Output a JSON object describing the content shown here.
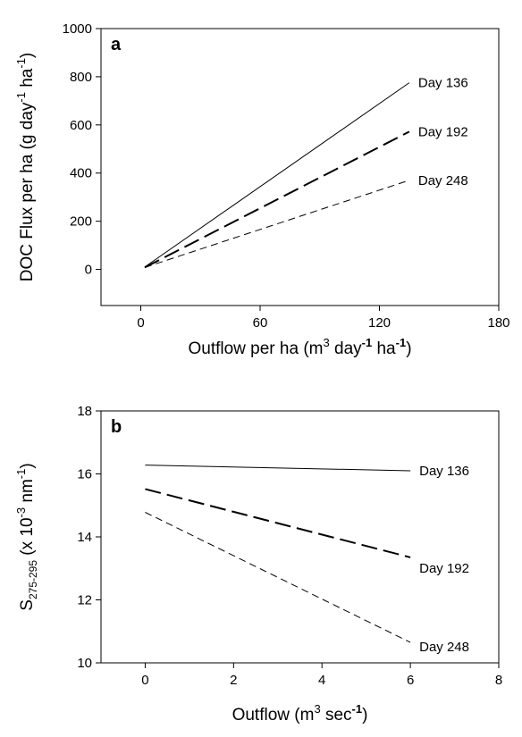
{
  "chart_data": [
    {
      "type": "line",
      "panel_label": "a",
      "xlabel": "Outflow per ha (m³ day⁻¹ ha⁻¹)",
      "xlabel_parts": {
        "pre": "Outflow per ha (m",
        "sup1": "3",
        "mid1": " day",
        "sup2": "-1",
        "mid2": " ha",
        "sup3": "-1",
        "post": ")"
      },
      "ylabel": "DOC Flux per ha (g day⁻¹ ha⁻¹)",
      "ylabel_parts": {
        "pre": "DOC Flux per ha (g day",
        "sup1": "-1",
        "mid1": " ha",
        "sup2": "-1",
        "post": ")"
      },
      "xlim": [
        -20,
        180
      ],
      "ylim": [
        -150,
        1000
      ],
      "xticks": [
        0,
        60,
        120,
        180
      ],
      "yticks": [
        0,
        200,
        400,
        600,
        800,
        1000
      ],
      "grid": false,
      "series": [
        {
          "name": "Day 136",
          "style": "solid",
          "x": [
            2,
            135
          ],
          "y": [
            10,
            775
          ]
        },
        {
          "name": "Day 192",
          "style": "long-dash",
          "x": [
            2,
            135
          ],
          "y": [
            8,
            572
          ]
        },
        {
          "name": "Day 248",
          "style": "short-dash",
          "x": [
            2,
            135
          ],
          "y": [
            8,
            370
          ]
        }
      ]
    },
    {
      "type": "line",
      "panel_label": "b",
      "xlabel": "Outflow (m³ sec⁻¹)",
      "xlabel_parts": {
        "pre": "Outflow (m",
        "sup1": "3",
        "mid1": " sec",
        "sup2": "-1",
        "post": ")"
      },
      "ylabel": "S275-295 (x 10⁻³ nm⁻¹)",
      "ylabel_parts": {
        "pre": "S",
        "sub": "275-295",
        "mid0": " (x 10",
        "sup1": "-3",
        "mid1": " nm",
        "sup2": "-1",
        "post": ")"
      },
      "xlim": [
        -1,
        8
      ],
      "ylim": [
        10,
        18
      ],
      "xticks": [
        0,
        2,
        4,
        6,
        8
      ],
      "yticks": [
        10,
        12,
        14,
        16,
        18
      ],
      "grid": false,
      "series": [
        {
          "name": "Day 136",
          "style": "solid",
          "x": [
            0,
            6
          ],
          "y": [
            16.28,
            16.1
          ]
        },
        {
          "name": "Day 192",
          "style": "long-dash",
          "x": [
            0,
            6
          ],
          "y": [
            15.52,
            13.35
          ]
        },
        {
          "name": "Day 248",
          "style": "short-dash",
          "x": [
            0,
            6
          ],
          "y": [
            14.78,
            10.65
          ]
        }
      ]
    }
  ]
}
